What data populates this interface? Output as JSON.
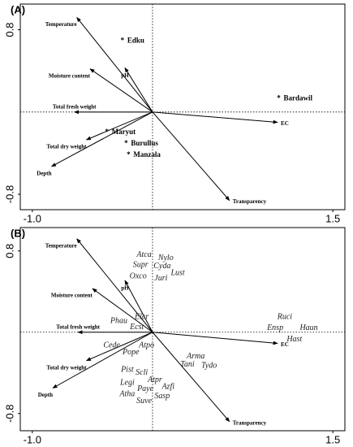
{
  "chart_data": [
    {
      "type": "biplot",
      "title": "(A)",
      "xlim": [
        -1.1,
        1.6
      ],
      "ylim": [
        -0.95,
        1.05
      ],
      "xticks": [
        {
          "value": -1,
          "label": "-1.0"
        },
        1.5
      ],
      "yticks": [
        -0.8,
        0.8
      ],
      "vectors": [
        {
          "name": "Temperature",
          "x": -0.63,
          "y": 0.92
        },
        {
          "name": "Moisture content",
          "x": -0.52,
          "y": 0.42
        },
        {
          "name": "pH",
          "x": -0.23,
          "y": 0.43
        },
        {
          "name": "Total fresh weight",
          "x": -0.65,
          "y": 0
        },
        {
          "name": "Total dry weight",
          "x": -0.55,
          "y": -0.27
        },
        {
          "name": "Depth",
          "x": -0.84,
          "y": -0.53
        },
        {
          "name": "EC",
          "x": 1.04,
          "y": -0.1
        },
        {
          "name": "Transparency",
          "x": 0.64,
          "y": -0.86
        }
      ],
      "marker": "*",
      "points": [
        {
          "name": "Edku",
          "x": -0.25,
          "y": 0.69
        },
        {
          "name": "Bardawil",
          "x": 1.05,
          "y": 0.13
        },
        {
          "name": "Maryut",
          "x": -0.38,
          "y": -0.2
        },
        {
          "name": "Burullus",
          "x": -0.22,
          "y": -0.31
        },
        {
          "name": "Manzala",
          "x": -0.2,
          "y": -0.42
        }
      ]
    },
    {
      "type": "biplot",
      "title": "(B)",
      "xlim": [
        -1.1,
        1.6
      ],
      "ylim": [
        -0.97,
        1.03
      ],
      "xticks": [
        {
          "value": -1,
          "label": "-1.0"
        },
        1.5
      ],
      "yticks": [
        -0.8,
        0.8
      ],
      "vectors": [
        {
          "name": "Temperature",
          "x": -0.63,
          "y": 0.92
        },
        {
          "name": "Moisture content",
          "x": -0.5,
          "y": 0.43
        },
        {
          "name": "pH",
          "x": -0.23,
          "y": 0.51
        },
        {
          "name": "Total fresh weight",
          "x": -0.62,
          "y": 0
        },
        {
          "name": "Total dry weight",
          "x": -0.55,
          "y": -0.28
        },
        {
          "name": "Depth",
          "x": -0.83,
          "y": -0.55
        },
        {
          "name": "EC",
          "x": 1.04,
          "y": -0.11
        },
        {
          "name": "Transparency",
          "x": 0.64,
          "y": -0.88
        }
      ],
      "points": [
        {
          "name": "Atca",
          "x": -0.07,
          "y": 0.76
        },
        {
          "name": "Nylo",
          "x": 0.11,
          "y": 0.73
        },
        {
          "name": "Supr",
          "x": -0.1,
          "y": 0.66
        },
        {
          "name": "Cyda",
          "x": 0.08,
          "y": 0.65
        },
        {
          "name": "Lust",
          "x": 0.21,
          "y": 0.58
        },
        {
          "name": "Oxco",
          "x": -0.12,
          "y": 0.55
        },
        {
          "name": "Juri",
          "x": 0.07,
          "y": 0.53
        },
        {
          "name": "Phau",
          "x": -0.28,
          "y": 0.11
        },
        {
          "name": "Elcr",
          "x": -0.09,
          "y": 0.15
        },
        {
          "name": "Ecst",
          "x": -0.13,
          "y": 0.05
        },
        {
          "name": "Cede",
          "x": -0.34,
          "y": -0.13
        },
        {
          "name": "Pope",
          "x": -0.18,
          "y": -0.2
        },
        {
          "name": "Atpo",
          "x": -0.05,
          "y": -0.13
        },
        {
          "name": "Pist",
          "x": -0.21,
          "y": -0.37
        },
        {
          "name": "Scli",
          "x": -0.09,
          "y": -0.4
        },
        {
          "name": "Legi",
          "x": -0.21,
          "y": -0.5
        },
        {
          "name": "Atpr",
          "x": 0.02,
          "y": -0.47
        },
        {
          "name": "Paye",
          "x": -0.06,
          "y": -0.56
        },
        {
          "name": "Azfi",
          "x": 0.13,
          "y": -0.54
        },
        {
          "name": "Atha",
          "x": -0.21,
          "y": -0.61
        },
        {
          "name": "Sasp",
          "x": 0.08,
          "y": -0.63
        },
        {
          "name": "Suve",
          "x": -0.07,
          "y": -0.68
        },
        {
          "name": "Arma",
          "x": 0.36,
          "y": -0.24
        },
        {
          "name": "Tani",
          "x": 0.29,
          "y": -0.32
        },
        {
          "name": "Tydo",
          "x": 0.47,
          "y": -0.33
        },
        {
          "name": "Ruci",
          "x": 1.1,
          "y": 0.15
        },
        {
          "name": "Ensp",
          "x": 1.02,
          "y": 0.04
        },
        {
          "name": "Haun",
          "x": 1.3,
          "y": 0.04
        },
        {
          "name": "Hast",
          "x": 1.18,
          "y": -0.07
        }
      ]
    }
  ]
}
